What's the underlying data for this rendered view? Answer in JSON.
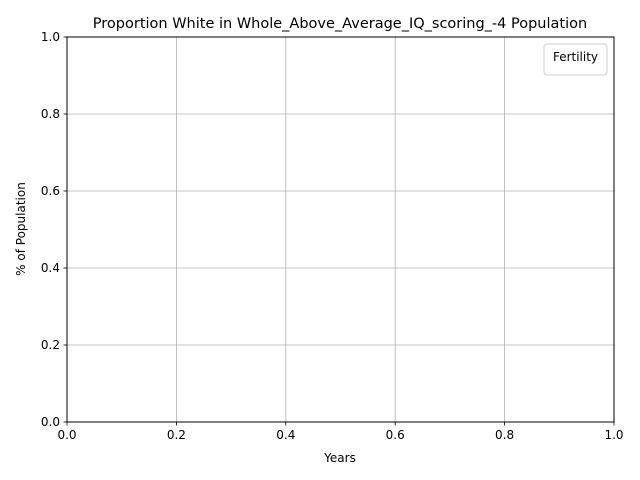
{
  "chart_data": {
    "type": "line",
    "title": "Proportion White in Whole_Above_Average_IQ_scoring_-4 Population",
    "xlabel": "Years",
    "ylabel": "% of Population",
    "xlim": [
      0.0,
      1.0
    ],
    "ylim": [
      0.0,
      1.0
    ],
    "x_ticks": [
      "0.0",
      "0.2",
      "0.4",
      "0.6",
      "0.8",
      "1.0"
    ],
    "y_ticks": [
      "0.0",
      "0.2",
      "0.4",
      "0.6",
      "0.8",
      "1.0"
    ],
    "grid": true,
    "legend": {
      "title": "Fertility",
      "placement": "top-right",
      "entries": []
    },
    "series": [],
    "colors": {
      "grid": "#b0b0b0",
      "axis": "#000000",
      "background": "#ffffff"
    }
  }
}
